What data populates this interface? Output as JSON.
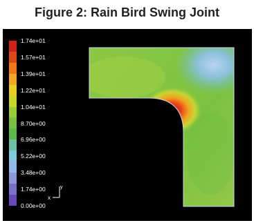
{
  "title": "Figure 2: Rain Bird Swing Joint",
  "legend": {
    "labels": [
      "1.74e+01",
      "1.57e+01",
      "1.39e+01",
      "1.22e+01",
      "1.04e+01",
      "8.70e+00",
      "6.96e+00",
      "5.22e+00",
      "3.48e+00",
      "1.74e+00",
      "0.00e+00"
    ],
    "colors": [
      "#d02018",
      "#e04818",
      "#f07a18",
      "#f2a820",
      "#e8d020",
      "#c8d828",
      "#9ccc34",
      "#78c040",
      "#5cb84a",
      "#6cc0a8",
      "#80c8e0",
      "#90b8e8",
      "#8c98d8",
      "#7c70c8",
      "#6a48b8"
    ]
  },
  "axis": {
    "x": "x",
    "y": "y"
  },
  "colors": {
    "background": "#000000",
    "body": "#84c544",
    "hot": "#d62a1a",
    "cool": "#8fb8e6"
  }
}
